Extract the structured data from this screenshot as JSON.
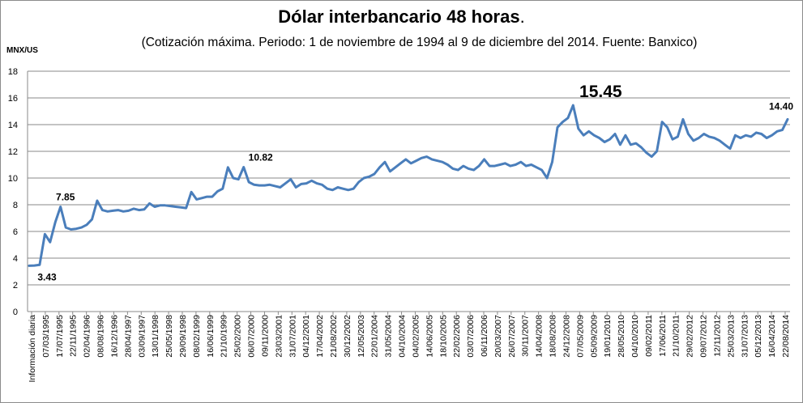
{
  "chart_data": {
    "type": "line",
    "title": "Dólar interbancario 48 horas",
    "title_suffix": ".",
    "subtitle": "(Cotización máxima. Periodo: 1 de noviembre de 1994 al 9 de diciembre del 2014. Fuente: Banxico)",
    "ylabel": "MNX/US",
    "xlabel": "",
    "ylim": [
      0,
      18
    ],
    "yticks": [
      "0",
      "2",
      "4",
      "6",
      "8",
      "10",
      "12",
      "14",
      "16",
      "18"
    ],
    "grid": "horizontal",
    "legend": "none",
    "line_color": "#4a7ebb",
    "x_tick_labels": [
      "Información diaria",
      "07/03/1995",
      "17/07/1995",
      "22/11/1995",
      "02/04/1996",
      "08/08/1996",
      "16/12/1996",
      "28/04/1997",
      "03/09/1997",
      "13/01/1998",
      "25/05/1998",
      "29/09/1998",
      "08/02/1999",
      "16/06/1999",
      "21/10/1999",
      "25/02/2000",
      "06/07/2000",
      "09/11/2000",
      "23/03/2001",
      "31/07/2001",
      "04/12/2001",
      "17/04/2002",
      "21/08/2002",
      "30/12/2002",
      "12/05/2003",
      "22/01/2004",
      "31/05/2004",
      "04/10/2004",
      "04/02/2005",
      "14/06/2005",
      "18/10/2005",
      "22/02/2006",
      "03/07/2006",
      "06/11/2006",
      "20/03/2007",
      "26/07/2007",
      "30/11/2007",
      "14/04/2008",
      "18/08/2008",
      "24/12/2008",
      "07/05/2009",
      "05/09/2009",
      "19/01/2010",
      "28/05/2010",
      "04/10/2010",
      "09/02/2011",
      "17/06/2011",
      "21/10/2011",
      "29/02/2012",
      "09/07/2012",
      "12/11/2012",
      "25/03/2013",
      "31/07/2013",
      "05/12/2013",
      "16/04/2014",
      "22/08/2014"
    ],
    "series": [
      {
        "values": [
          3.43,
          3.45,
          3.5,
          5.8,
          5.2,
          6.7,
          7.85,
          6.3,
          6.15,
          6.2,
          6.3,
          6.5,
          6.9,
          8.3,
          7.6,
          7.5,
          7.55,
          7.6,
          7.5,
          7.55,
          7.7,
          7.6,
          7.65,
          8.1,
          7.85,
          7.95,
          7.95,
          7.9,
          7.85,
          7.8,
          7.75,
          8.95,
          8.4,
          8.5,
          8.6,
          8.6,
          9.0,
          9.2,
          10.8,
          10.0,
          9.9,
          10.82,
          9.7,
          9.5,
          9.45,
          9.45,
          9.5,
          9.4,
          9.3,
          9.6,
          9.9,
          9.3,
          9.55,
          9.6,
          9.8,
          9.6,
          9.5,
          9.2,
          9.1,
          9.3,
          9.2,
          9.1,
          9.2,
          9.7,
          10.0,
          10.1,
          10.3,
          10.8,
          11.2,
          10.5,
          10.8,
          11.1,
          11.4,
          11.1,
          11.3,
          11.5,
          11.6,
          11.4,
          11.3,
          11.2,
          11.0,
          10.7,
          10.6,
          10.9,
          10.7,
          10.6,
          10.9,
          11.4,
          10.9,
          10.9,
          11.0,
          11.1,
          10.9,
          11.0,
          11.2,
          10.9,
          11.0,
          10.8,
          10.6,
          10.0,
          11.2,
          13.8,
          14.2,
          14.5,
          15.45,
          13.7,
          13.2,
          13.5,
          13.2,
          13.0,
          12.7,
          12.9,
          13.3,
          12.5,
          13.2,
          12.5,
          12.6,
          12.3,
          11.9,
          11.6,
          12.0,
          14.2,
          13.8,
          12.9,
          13.1,
          14.4,
          13.3,
          12.8,
          13.0,
          13.3,
          13.1,
          13.0,
          12.8,
          12.5,
          12.2,
          13.2,
          13.0,
          13.2,
          13.1,
          13.4,
          13.3,
          13.0,
          13.2,
          13.5,
          13.6,
          14.4
        ]
      }
    ],
    "annotations": [
      {
        "label": "3.43",
        "index": 0,
        "size": 12
      },
      {
        "label": "7.85",
        "index": 6,
        "size": 12
      },
      {
        "label": "10.82",
        "index": 41,
        "size": 12
      },
      {
        "label": "15.45",
        "index": 104,
        "size": 21
      },
      {
        "label": "14.40",
        "index": 145,
        "size": 12
      }
    ]
  }
}
